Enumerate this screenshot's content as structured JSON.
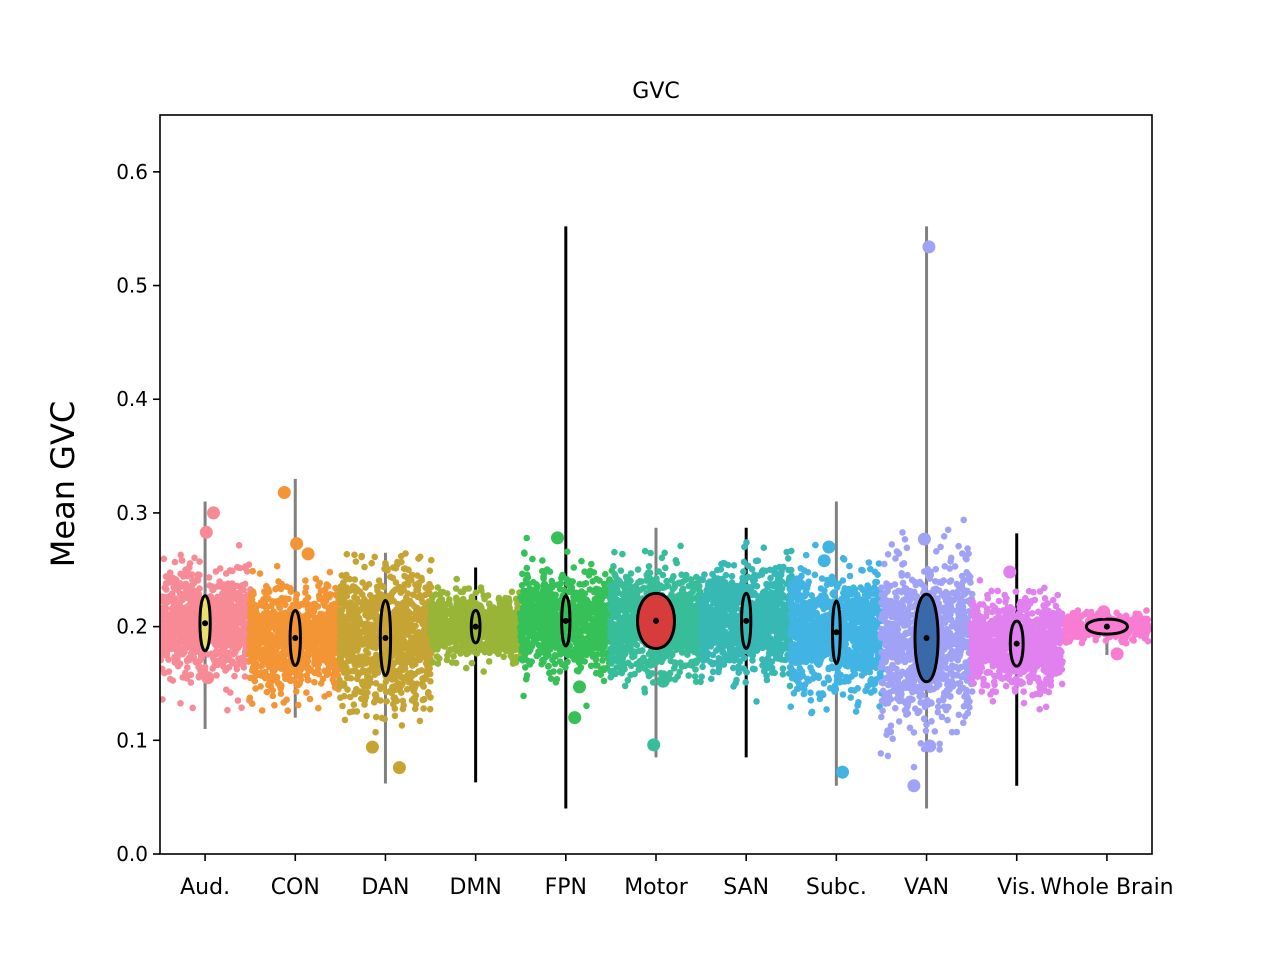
{
  "chart_data": {
    "type": "scatter",
    "title": "GVC",
    "xlabel": "",
    "ylabel": "Mean GVC",
    "ylim": [
      0.0,
      0.65
    ],
    "yticks": [
      "0.0",
      "0.1",
      "0.2",
      "0.3",
      "0.4",
      "0.5",
      "0.6"
    ],
    "grid": false,
    "categories": [
      "Aud.",
      "CON",
      "DAN",
      "DMN",
      "FPN",
      "Motor",
      "SAN",
      "Subc.",
      "VAN",
      "Vis.",
      "Whole Brain"
    ],
    "groups": [
      {
        "name": "Aud.",
        "color": "#f88a96",
        "center": 0.203,
        "spread": 0.022,
        "whisker": [
          0.11,
          0.31
        ],
        "line_color": "#808080",
        "violin_color": "#e8e06a",
        "violin_halfwidth": 0.2
      },
      {
        "name": "CON",
        "color": "#f39535",
        "center": 0.19,
        "spread": 0.022,
        "whisker": [
          0.12,
          0.33
        ],
        "line_color": "#808080",
        "violin_color": "#f39535",
        "violin_halfwidth": 0.2
      },
      {
        "name": "DAN",
        "color": "#c6a434",
        "center": 0.19,
        "spread": 0.03,
        "whisker": [
          0.062,
          0.265
        ],
        "line_color": "#808080",
        "violin_color": "#c6a434",
        "violin_halfwidth": 0.2
      },
      {
        "name": "DMN",
        "color": "#98b538",
        "center": 0.2,
        "spread": 0.013,
        "whisker": [
          0.063,
          0.252
        ],
        "line_color": "#000000",
        "violin_color": "#98b538",
        "violin_halfwidth": 0.17
      },
      {
        "name": "FPN",
        "color": "#36c058",
        "center": 0.205,
        "spread": 0.02,
        "whisker": [
          0.04,
          0.552
        ],
        "line_color": "#000000",
        "violin_color": "#36c058",
        "violin_halfwidth": 0.16
      },
      {
        "name": "Motor",
        "color": "#38bd9a",
        "center": 0.205,
        "spread": 0.022,
        "whisker": [
          0.085,
          0.287
        ],
        "line_color": "#808080",
        "violin_color": "#d63c3c",
        "violin_halfwidth": 0.72
      },
      {
        "name": "SAN",
        "color": "#37b8b4",
        "center": 0.205,
        "spread": 0.022,
        "whisker": [
          0.085,
          0.287
        ],
        "line_color": "#000000",
        "violin_color": "#37b8b4",
        "violin_halfwidth": 0.18
      },
      {
        "name": "Subc.",
        "color": "#41b4e3",
        "center": 0.195,
        "spread": 0.025,
        "whisker": [
          0.06,
          0.31
        ],
        "line_color": "#808080",
        "violin_color": "#41b4e3",
        "violin_halfwidth": 0.15
      },
      {
        "name": "VAN",
        "color": "#a0a2f5",
        "center": 0.19,
        "spread": 0.035,
        "whisker": [
          0.04,
          0.552
        ],
        "line_color": "#808080",
        "violin_color": "#3a69aa",
        "violin_halfwidth": 0.45
      },
      {
        "name": "Vis.",
        "color": "#e081ef",
        "center": 0.185,
        "spread": 0.018,
        "whisker": [
          0.06,
          0.282
        ],
        "line_color": "#000000",
        "violin_color": "#e081ef",
        "violin_halfwidth": 0.25
      },
      {
        "name": "Whole Brain",
        "color": "#f77cd2",
        "center": 0.2,
        "spread": 0.006,
        "whisker": [
          0.175,
          0.215
        ],
        "line_color": "#808080",
        "violin_color": "#f77cd2",
        "violin_halfwidth": 0.8
      }
    ],
    "outliers": [
      {
        "group": "Aud.",
        "y": 0.3
      },
      {
        "group": "Aud.",
        "y": 0.283
      },
      {
        "group": "Aud.",
        "y": 0.155
      },
      {
        "group": "CON",
        "y": 0.318
      },
      {
        "group": "CON",
        "y": 0.273
      },
      {
        "group": "CON",
        "y": 0.264
      },
      {
        "group": "DAN",
        "y": 0.094
      },
      {
        "group": "DAN",
        "y": 0.076
      },
      {
        "group": "FPN",
        "y": 0.12
      },
      {
        "group": "FPN",
        "y": 0.147
      },
      {
        "group": "FPN",
        "y": 0.278
      },
      {
        "group": "Motor",
        "y": 0.096
      },
      {
        "group": "Motor",
        "y": 0.152
      },
      {
        "group": "Subc.",
        "y": 0.072
      },
      {
        "group": "Subc.",
        "y": 0.27
      },
      {
        "group": "Subc.",
        "y": 0.258
      },
      {
        "group": "VAN",
        "y": 0.534
      },
      {
        "group": "VAN",
        "y": 0.06
      },
      {
        "group": "VAN",
        "y": 0.095
      },
      {
        "group": "VAN",
        "y": 0.277
      },
      {
        "group": "Vis.",
        "y": 0.248
      },
      {
        "group": "Whole Brain",
        "y": 0.213
      },
      {
        "group": "Whole Brain",
        "y": 0.176
      }
    ]
  }
}
